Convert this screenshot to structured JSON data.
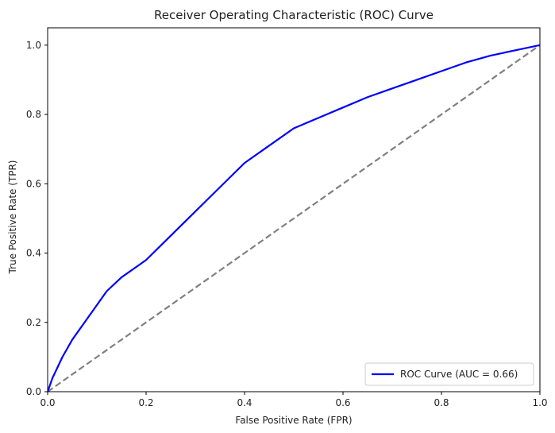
{
  "chart_data": {
    "type": "line",
    "title": "Receiver Operating Characteristic (ROC) Curve",
    "xlabel": "False Positive Rate (FPR)",
    "ylabel": "True Positive Rate (TPR)",
    "xlim": [
      0,
      1.0
    ],
    "ylim": [
      0,
      1.05
    ],
    "xticks": [
      0.0,
      0.2,
      0.4,
      0.6,
      0.8,
      1.0
    ],
    "xtick_labels": [
      "0.0",
      "0.2",
      "0.4",
      "0.6",
      "0.8",
      "1.0"
    ],
    "yticks": [
      0.0,
      0.2,
      0.4,
      0.6,
      0.8,
      1.0
    ],
    "ytick_labels": [
      "0.0",
      "0.2",
      "0.4",
      "0.6",
      "0.8",
      "1.0"
    ],
    "grid": false,
    "legend_position": "lower-right",
    "series": [
      {
        "name": "ROC Curve (AUC = 0.66)",
        "color": "#0000ff",
        "style": "solid",
        "x": [
          0.0,
          0.01,
          0.02,
          0.03,
          0.05,
          0.07,
          0.1,
          0.12,
          0.15,
          0.18,
          0.2,
          0.25,
          0.3,
          0.35,
          0.4,
          0.45,
          0.5,
          0.55,
          0.6,
          0.65,
          0.7,
          0.75,
          0.8,
          0.85,
          0.9,
          0.95,
          1.0
        ],
        "y": [
          0.0,
          0.04,
          0.07,
          0.1,
          0.15,
          0.19,
          0.25,
          0.29,
          0.33,
          0.36,
          0.38,
          0.45,
          0.52,
          0.59,
          0.66,
          0.71,
          0.76,
          0.79,
          0.82,
          0.85,
          0.875,
          0.9,
          0.925,
          0.95,
          0.97,
          0.985,
          1.0
        ]
      },
      {
        "name": "",
        "color": "#808080",
        "style": "dashed",
        "x": [
          0.0,
          1.0
        ],
        "y": [
          0.0,
          1.0
        ]
      }
    ]
  }
}
